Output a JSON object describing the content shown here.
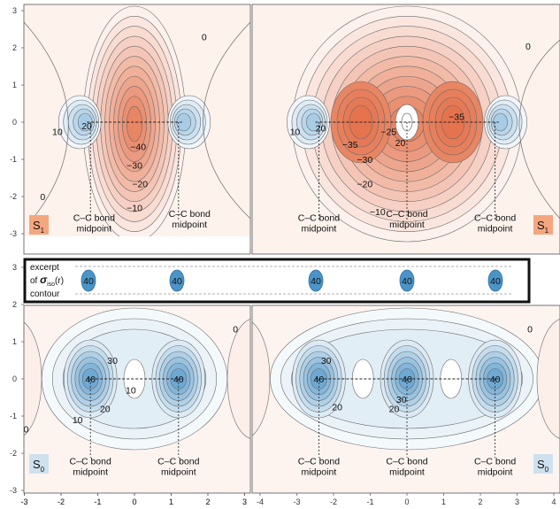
{
  "chart_data": {
    "type": "contour",
    "colors": {
      "negative": "#e46f48",
      "positive": "#4a94c8",
      "line": "#6b6b6b"
    },
    "y_ticks": [
      "3",
      "2",
      "1",
      "0",
      "-1",
      "-2",
      "-3"
    ],
    "panels": [
      {
        "name": "top-left",
        "state": "S",
        "state_sub": "1",
        "x_ticks": [
          "-3",
          "-2",
          "-1",
          "0",
          "1",
          "2",
          "3"
        ],
        "xlim": [
          -3.2,
          3.4
        ],
        "ylim": [
          -3.4,
          3.1
        ],
        "bond_midpoints": [
          -1.2,
          1.2
        ],
        "contour_labels": [
          {
            "text": "0",
            "x": 1.9,
            "y": 2.3
          },
          {
            "text": "0",
            "x": -2.5,
            "y": -2.0
          },
          {
            "text": "10",
            "x": -2.1,
            "y": -0.25
          },
          {
            "text": "20",
            "x": -1.3,
            "y": -0.1
          },
          {
            "text": "−40",
            "x": 0.1,
            "y": -0.65
          },
          {
            "text": "−30",
            "x": 0.0,
            "y": -1.15
          },
          {
            "text": "−20",
            "x": 0.15,
            "y": -1.65
          },
          {
            "text": "−10",
            "x": 0.0,
            "y": -2.3
          }
        ],
        "annotations": [
          {
            "lines": [
              "C–C bond",
              "midpoint"
            ],
            "x": -1.1,
            "y": -2.65
          },
          {
            "lines": [
              "C–C bond",
              "midpoint"
            ],
            "x": 1.5,
            "y": -2.55
          }
        ]
      },
      {
        "name": "top-right",
        "state": "S",
        "state_sub": "1",
        "x_ticks": [],
        "xlim": [
          -4.2,
          4.2
        ],
        "ylim": [
          -3.4,
          3.1
        ],
        "bond_midpoints": [
          -2.4,
          0.0,
          2.4
        ],
        "contour_labels": [
          {
            "text": "0",
            "x": 3.3,
            "y": 2.05
          },
          {
            "text": "10",
            "x": -3.05,
            "y": -0.25
          },
          {
            "text": "20",
            "x": -2.35,
            "y": -0.15
          },
          {
            "text": "−35",
            "x": -1.55,
            "y": -0.6
          },
          {
            "text": "−30",
            "x": -1.15,
            "y": -1.0
          },
          {
            "text": "−25",
            "x": -0.5,
            "y": -0.25
          },
          {
            "text": "20",
            "x": -0.18,
            "y": -0.55
          },
          {
            "text": "−20",
            "x": -1.15,
            "y": -1.65
          },
          {
            "text": "−10",
            "x": -0.8,
            "y": -2.4
          },
          {
            "text": "−35",
            "x": 1.35,
            "y": 0.15
          }
        ],
        "annotations": [
          {
            "lines": [
              "C–C bond",
              "midpoint"
            ],
            "x": -2.4,
            "y": -2.65
          },
          {
            "lines": [
              "C–C bond",
              "midpoint"
            ],
            "x": 0.0,
            "y": -2.55
          },
          {
            "lines": [
              "C–C bond",
              "midpoint"
            ],
            "x": 2.4,
            "y": -2.65
          }
        ]
      },
      {
        "name": "bottom-left",
        "state": "S",
        "state_sub": "0",
        "x_ticks": [
          "-3",
          "-2",
          "-1",
          "0",
          "1",
          "2",
          "3"
        ],
        "xlim": [
          -3.2,
          3.4
        ],
        "ylim": [
          -3.1,
          3.4
        ],
        "bond_midpoints": [
          -1.2,
          1.2
        ],
        "contour_labels": [
          {
            "text": "0",
            "x": -2.95,
            "y": -1.35
          },
          {
            "text": "0",
            "x": 2.75,
            "y": 1.35
          },
          {
            "text": "30",
            "x": -0.6,
            "y": 0.5
          },
          {
            "text": "40",
            "x": -1.2,
            "y": 0.0
          },
          {
            "text": "40",
            "x": 1.2,
            "y": 0.0
          },
          {
            "text": "10",
            "x": -0.1,
            "y": -0.3
          },
          {
            "text": "20",
            "x": -0.8,
            "y": -0.8
          },
          {
            "text": "10",
            "x": -1.55,
            "y": -1.1
          }
        ],
        "annotations": [
          {
            "lines": [
              "C–C bond",
              "midpoint"
            ],
            "x": -1.2,
            "y": -2.3
          },
          {
            "lines": [
              "C–C bond",
              "midpoint"
            ],
            "x": 1.2,
            "y": -2.3
          }
        ]
      },
      {
        "name": "bottom-right",
        "state": "S",
        "state_sub": "0",
        "x_ticks": [
          "-4",
          "-3",
          "-2",
          "-1",
          "0",
          "1",
          "2",
          "3",
          "4"
        ],
        "xlim": [
          -4.2,
          4.2
        ],
        "ylim": [
          -3.1,
          3.4
        ],
        "bond_midpoints": [
          -2.4,
          0.0,
          2.4
        ],
        "contour_labels": [
          {
            "text": "0",
            "x": 3.35,
            "y": 1.35
          },
          {
            "text": "30",
            "x": -2.2,
            "y": 0.5
          },
          {
            "text": "40",
            "x": -2.4,
            "y": 0.0
          },
          {
            "text": "40",
            "x": 0.0,
            "y": 0.0
          },
          {
            "text": "40",
            "x": 2.4,
            "y": 0.0
          },
          {
            "text": "20",
            "x": -1.9,
            "y": -0.75
          },
          {
            "text": "30",
            "x": -0.15,
            "y": -0.55
          },
          {
            "text": "20",
            "x": -0.35,
            "y": -0.8
          }
        ],
        "annotations": [
          {
            "lines": [
              "C–C bond",
              "midpoint"
            ],
            "x": -2.4,
            "y": -2.3
          },
          {
            "lines": [
              "C–C bond",
              "midpoint"
            ],
            "x": 0.0,
            "y": -2.3
          },
          {
            "lines": [
              "C–C bond",
              "midpoint"
            ],
            "x": 2.4,
            "y": -2.3
          }
        ]
      }
    ],
    "excerpt_box": {
      "label_lines": [
        "excerpt",
        "of σiso(r)",
        "contour"
      ],
      "label_main": "of ",
      "label_symbol": "σ",
      "label_sub": "iso",
      "label_tail": "(r)",
      "label_last": "contour",
      "values": [
        "40",
        "40",
        "40",
        "40",
        "40"
      ]
    }
  }
}
